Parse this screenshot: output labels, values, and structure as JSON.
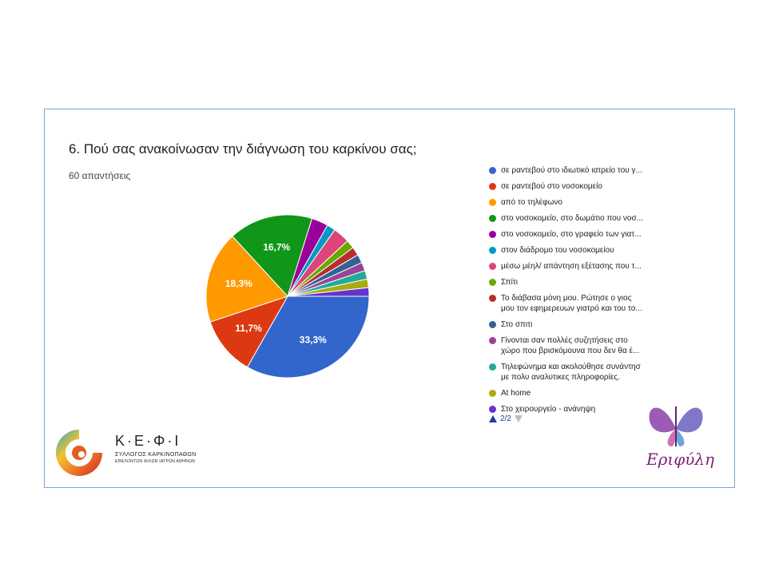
{
  "question": {
    "title": "6. Πού σας ανακοίνωσαν την διάγνωση του καρκίνου σας;",
    "responses": "60 απαντήσεις"
  },
  "chart_data": {
    "type": "pie",
    "title": "6. Πού σας ανακοίνωσαν την διάγνωση του καρκίνου σας;",
    "subtitle": "60 απαντήσεις",
    "legend_position": "right",
    "slices": [
      {
        "label": "σε ραντεβού στο ιδιωτικό ιατρείο του γ...",
        "value": 33.3,
        "display": "33,3%",
        "color": "#3366cc"
      },
      {
        "label": "σε ραντεβού στο νοσοκομείο",
        "value": 11.7,
        "display": "11,7%",
        "color": "#dc3912"
      },
      {
        "label": "από το τηλέφωνο",
        "value": 18.3,
        "display": "18,3%",
        "color": "#ff9900"
      },
      {
        "label": "στο νοσοκομείο, στο δωμάτιο που νοσ...",
        "value": 16.7,
        "display": "16,7%",
        "color": "#109618"
      },
      {
        "label": "στο νοσοκομείο, στο γραφείο των γιατ...",
        "value": 3.3,
        "display": "",
        "color": "#990099"
      },
      {
        "label": "στον διάδρομο του νοσοκομείου",
        "value": 1.7,
        "display": "",
        "color": "#0099c6"
      },
      {
        "label": "μέσω μέηλ/ απάντηση εξέτασης που τ...",
        "value": 3.3,
        "display": "",
        "color": "#dd4477"
      },
      {
        "label": "Σπίτι",
        "value": 1.7,
        "display": "",
        "color": "#66aa00"
      },
      {
        "label": "Το διάβασα μόνη μου. Ρώτησε ο γιος\nμου τον εφημερευων γιατρό και του το...",
        "value": 1.7,
        "display": "",
        "color": "#b82e2e"
      },
      {
        "label": "Στο σπιτι",
        "value": 1.7,
        "display": "",
        "color": "#316395"
      },
      {
        "label": "Γίνονται σαν πολλές συζητήσεις στο\nχώρο που βρισκόμουνα που δεν θα έ...",
        "value": 1.7,
        "display": "",
        "color": "#994499"
      },
      {
        "label": "Τηλεφώνημα και ακολούθησε συνάντησ\nμε πολυ αναλυτικες πληροφορίες.",
        "value": 1.7,
        "display": "",
        "color": "#22aa99"
      },
      {
        "label": "At home",
        "value": 1.7,
        "display": "",
        "color": "#aaaa11"
      },
      {
        "label": "Στο χειρουργείο - ανάνηψη",
        "value": 1.7,
        "display": "",
        "color": "#6633cc"
      }
    ]
  },
  "pager": {
    "label": "2/2"
  },
  "logos": {
    "kefi": {
      "name": "Κ·Ε·Φ·Ι",
      "line1": "ΣΥΛΛΟΓΟΣ ΚΑΡΚΙΝΟΠΑΘΩΝ",
      "line2": "ΕΘΕΛΟΝΤΩΝ ΦΙΛΩΝ ΙΑΤΡΩΝ ΑΘΗΝΩΝ"
    },
    "erifyli": {
      "name": "Εριφύλη"
    }
  }
}
